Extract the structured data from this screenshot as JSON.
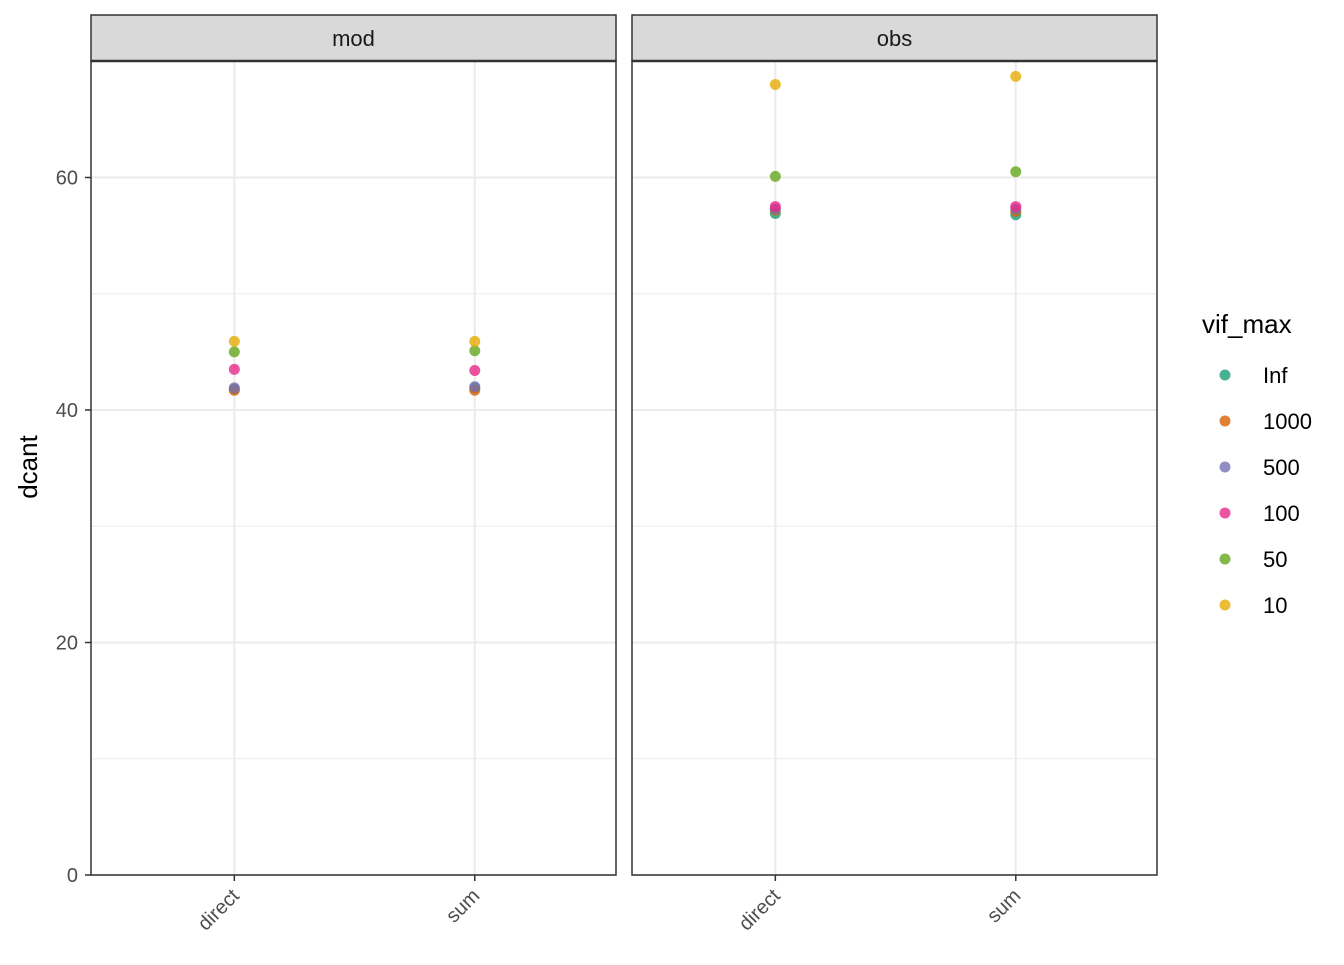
{
  "chart_data": {
    "type": "scatter",
    "ylabel": "dcant",
    "xlabel": "",
    "ylim": [
      0,
      70
    ],
    "yticks": [
      0,
      20,
      40,
      60
    ],
    "y_minor_ticks": [
      10,
      30,
      50
    ],
    "categories": [
      "direct",
      "sum"
    ],
    "facets": [
      "mod",
      "obs"
    ],
    "grid": true,
    "legend": {
      "title": "vif_max",
      "position": "right",
      "entries": [
        "Inf",
        "1000",
        "500",
        "100",
        "50",
        "10"
      ]
    },
    "series": [
      {
        "name": "Inf",
        "color": "#1B9E77",
        "values": {
          "mod": [
            41.8,
            41.9
          ],
          "obs": [
            56.9,
            56.8
          ]
        }
      },
      {
        "name": "1000",
        "color": "#D95F02",
        "values": {
          "mod": [
            41.7,
            41.7
          ],
          "obs": [
            57.2,
            57.1
          ]
        }
      },
      {
        "name": "500",
        "color": "#7570B3",
        "values": {
          "mod": [
            41.9,
            42.0
          ],
          "obs": [
            57.3,
            57.3
          ]
        }
      },
      {
        "name": "100",
        "color": "#E7298A",
        "values": {
          "mod": [
            43.5,
            43.4
          ],
          "obs": [
            57.5,
            57.5
          ]
        }
      },
      {
        "name": "50",
        "color": "#66A61E",
        "values": {
          "mod": [
            45.0,
            45.1
          ],
          "obs": [
            60.1,
            60.5
          ]
        }
      },
      {
        "name": "10",
        "color": "#E6AB02",
        "values": {
          "mod": [
            45.9,
            45.9
          ],
          "obs": [
            68.0,
            68.7
          ]
        }
      }
    ]
  }
}
